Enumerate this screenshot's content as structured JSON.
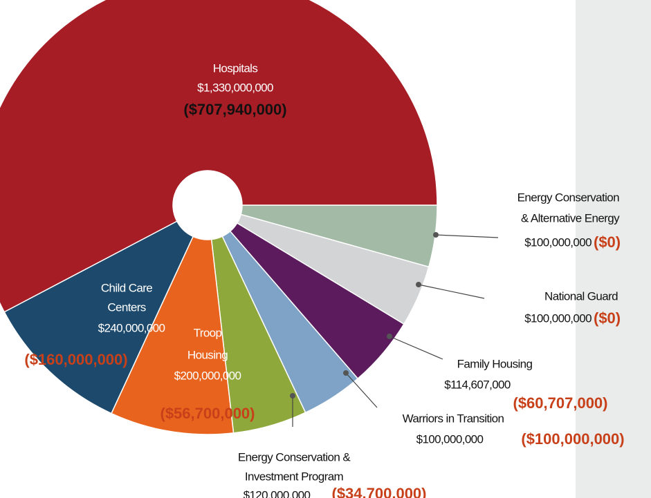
{
  "chart_data": {
    "type": "donut",
    "segments": [
      {
        "name_lines": [
          "Energy Conservation",
          "& Alternative Energy"
        ],
        "value": 100000000,
        "value_label": "$100,000,000",
        "reduction_label": "($0)",
        "color": "#a3baa6"
      },
      {
        "name_lines": [
          "National Guard"
        ],
        "value": 100000000,
        "value_label": "$100,000,000",
        "reduction_label": "($0)",
        "color": "#d3d4d5"
      },
      {
        "name_lines": [
          "Family Housing"
        ],
        "value": 114607000,
        "value_label": "$114,607,000",
        "reduction_label": "($60,707,000)",
        "color": "#5b1b5c"
      },
      {
        "name_lines": [
          "Warriors in Transition"
        ],
        "value": 100000000,
        "value_label": "$100,000,000",
        "reduction_label": "($100,000,000)",
        "color": "#7ea3c6"
      },
      {
        "name_lines": [
          "Energy Conservation &",
          "Investment Program"
        ],
        "value": 120000000,
        "value_label": "$120,000,000",
        "reduction_label": "($34,700,000)",
        "color": "#8fa83b"
      },
      {
        "name_lines": [
          "Troop",
          "Housing"
        ],
        "value": 200000000,
        "value_label": "$200,000,000",
        "reduction_label": "($56,700,000)",
        "color": "#e8641e"
      },
      {
        "name_lines": [
          "Child Care",
          "Centers"
        ],
        "value": 240000000,
        "value_label": "$240,000,000",
        "reduction_label": "($160,000,000)",
        "color": "#1d4a6c"
      },
      {
        "name_lines": [
          "Hospitals"
        ],
        "value": 1330000000,
        "value_label": "$1,330,000,000",
        "reduction_label": "($707,940,000)",
        "color": "#a61d25"
      }
    ]
  }
}
